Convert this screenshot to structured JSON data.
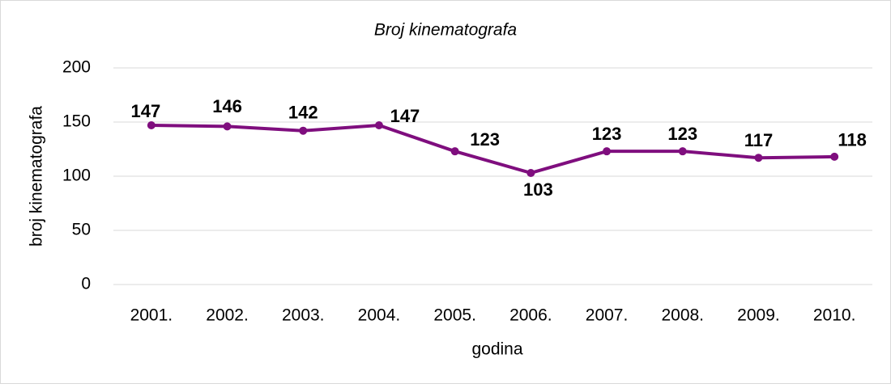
{
  "chart_data": {
    "type": "line",
    "title": "Broj kinematografa",
    "x_label": "godina",
    "y_label": "broj kinematografa",
    "categories": [
      "2001.",
      "2002.",
      "2003.",
      "2004.",
      "2005.",
      "2006.",
      "2007.",
      "2008.",
      "2009.",
      "2010."
    ],
    "series": [
      {
        "name": "broj kinematografa",
        "color": "#7f0e7e",
        "values": [
          147,
          146,
          142,
          147,
          123,
          103,
          123,
          123,
          117,
          118
        ]
      }
    ],
    "ylim": [
      0,
      200
    ],
    "yticks": [
      0,
      50,
      100,
      150,
      200
    ],
    "grid": true
  }
}
